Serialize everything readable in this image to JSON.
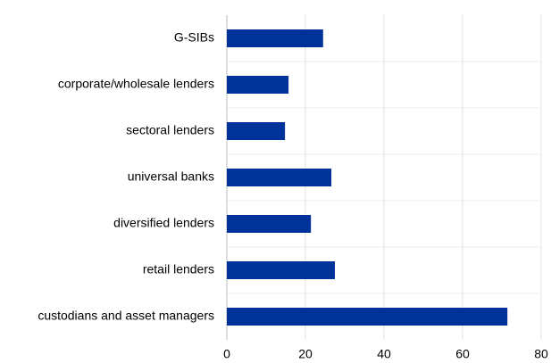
{
  "chart_data": {
    "type": "bar",
    "orientation": "horizontal",
    "categories": [
      "G-SIBs",
      "corporate/wholesale lenders",
      "sectoral lenders",
      "universal banks",
      "diversified lenders",
      "retail lenders",
      "custodians and asset managers"
    ],
    "values": [
      24.5,
      15.7,
      14.8,
      26.6,
      21.4,
      27.5,
      71.4
    ],
    "color": "#003299",
    "xlim": [
      0,
      80
    ],
    "xticks": [
      0,
      20,
      40,
      60,
      80
    ],
    "grid": true
  }
}
